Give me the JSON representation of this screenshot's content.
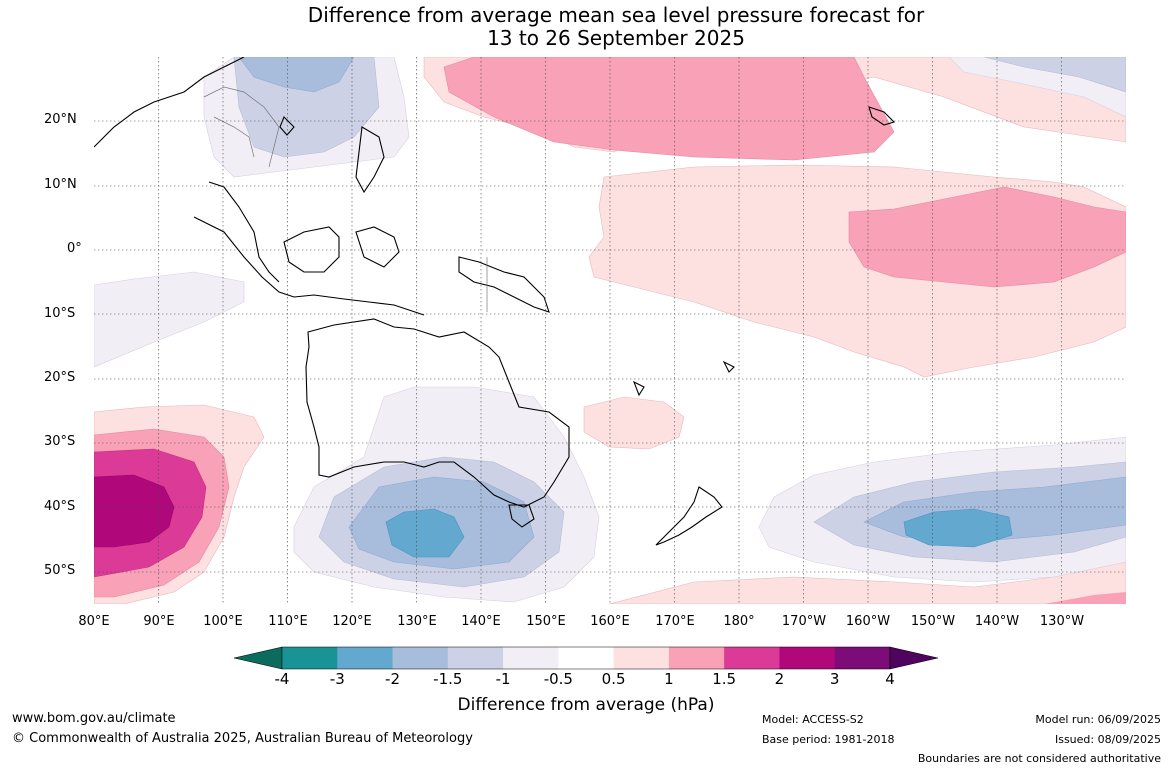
{
  "title": {
    "line1": "Difference from average mean sea level pressure forecast for",
    "line2": "13 to 26 September 2025"
  },
  "map": {
    "lat_labels": [
      "20°N",
      "10°N",
      "0°",
      "10°S",
      "20°S",
      "30°S",
      "40°S",
      "50°S"
    ],
    "lon_labels": [
      "80°E",
      "90°E",
      "100°E",
      "110°E",
      "120°E",
      "130°E",
      "140°E",
      "150°E",
      "160°E",
      "170°E",
      "180°",
      "170°W",
      "160°W",
      "150°W",
      "140°W",
      "130°W"
    ]
  },
  "colorbar": {
    "ticks": [
      "-4",
      "-3",
      "-2",
      "-1.5",
      "-1",
      "-0.5",
      "0.5",
      "1",
      "1.5",
      "2",
      "3",
      "4"
    ],
    "colors": [
      "#0b6b5c",
      "#1a9397",
      "#62a8cf",
      "#a8bcdc",
      "#cdd1e6",
      "#f2eef5",
      "#ffffff",
      "#fde0e0",
      "#f9a1b6",
      "#db3b96",
      "#b0087a",
      "#7d0b78",
      "#4f0460"
    ],
    "label": "Difference from average (hPa)"
  },
  "footer": {
    "website": "www.bom.gov.au/climate",
    "copyright": "© Commonwealth of Australia 2025, Australian Bureau of Meteorology",
    "model": "Model: ACCESS-S2",
    "base_period": "Base period: 1981-2018",
    "model_run": "Model run: 06/09/2025",
    "issued": "Issued: 08/09/2025",
    "disclaimer": "Boundaries are not considered authoritative"
  }
}
